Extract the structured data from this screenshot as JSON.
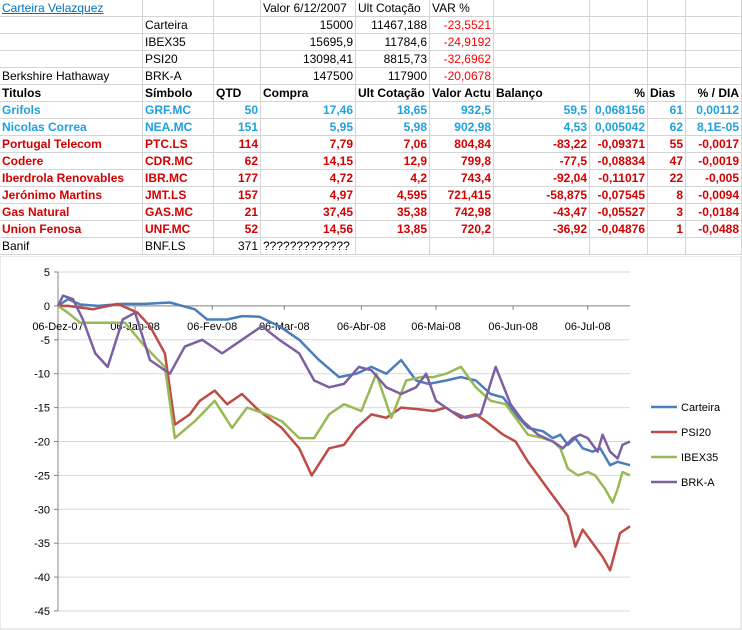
{
  "sheet": {
    "title": "Carteira Velazquez",
    "header_valor": "Valor 6/12/2007",
    "header_ult": "Ult Cotação",
    "header_var": "VAR %",
    "indices": [
      {
        "label": "",
        "name": "Carteira",
        "valor": "15000",
        "ult": "11467,188",
        "var": "-23,5521"
      },
      {
        "label": "",
        "name": "IBEX35",
        "valor": "15695,9",
        "ult": "11784,6",
        "var": "-24,9192"
      },
      {
        "label": "",
        "name": "PSI20",
        "valor": "13098,41",
        "ult": "8815,73",
        "var": "-32,6962"
      },
      {
        "label": "Berkshire Hathaway",
        "name": "BRK-A",
        "valor": "147500",
        "ult": "117900",
        "var": "-20,0678"
      }
    ],
    "columns": [
      "Titulos",
      "Símbolo",
      "QTD",
      "Compra",
      "Ult Cotação",
      "Valor Actu",
      "Balanço",
      "%",
      "Dias",
      "% / DIA"
    ],
    "rows": [
      {
        "titulo": "Grifols",
        "simbolo": "GRF.MC",
        "qtd": "50",
        "compra": "17,46",
        "ult": "18,65",
        "valor": "932,5",
        "balanco": "59,5",
        "pct": "0,068156",
        "dias": "61",
        "dia": "0,00112",
        "tone": "blue"
      },
      {
        "titulo": "Nicolas Correa",
        "simbolo": "NEA.MC",
        "qtd": "151",
        "compra": "5,95",
        "ult": "5,98",
        "valor": "902,98",
        "balanco": "4,53",
        "pct": "0,005042",
        "dias": "62",
        "dia": "8,1E-05",
        "tone": "blue"
      },
      {
        "titulo": "Portugal Telecom",
        "simbolo": "PTC.LS",
        "qtd": "114",
        "compra": "7,79",
        "ult": "7,06",
        "valor": "804,84",
        "balanco": "-83,22",
        "pct": "-0,09371",
        "dias": "55",
        "dia": "-0,0017",
        "tone": "red"
      },
      {
        "titulo": "Codere",
        "simbolo": "CDR.MC",
        "qtd": "62",
        "compra": "14,15",
        "ult": "12,9",
        "valor": "799,8",
        "balanco": "-77,5",
        "pct": "-0,08834",
        "dias": "47",
        "dia": "-0,0019",
        "tone": "red"
      },
      {
        "titulo": "Iberdrola Renovables",
        "simbolo": "IBR.MC",
        "qtd": "177",
        "compra": "4,72",
        "ult": "4,2",
        "valor": "743,4",
        "balanco": "-92,04",
        "pct": "-0,11017",
        "dias": "22",
        "dia": "-0,005",
        "tone": "red"
      },
      {
        "titulo": "Jerónimo Martins",
        "simbolo": "JMT.LS",
        "qtd": "157",
        "compra": "4,97",
        "ult": "4,595",
        "valor": "721,415",
        "balanco": "-58,875",
        "pct": "-0,07545",
        "dias": "8",
        "dia": "-0,0094",
        "tone": "red"
      },
      {
        "titulo": "Gas Natural",
        "simbolo": "GAS.MC",
        "qtd": "21",
        "compra": "37,45",
        "ult": "35,38",
        "valor": "742,98",
        "balanco": "-43,47",
        "pct": "-0,05527",
        "dias": "3",
        "dia": "-0,0184",
        "tone": "red"
      },
      {
        "titulo": "Union Fenosa",
        "simbolo": "UNF.MC",
        "qtd": "52",
        "compra": "14,56",
        "ult": "13,85",
        "valor": "720,2",
        "balanco": "-36,92",
        "pct": "-0,04876",
        "dias": "1",
        "dia": "-0,0488",
        "tone": "red"
      },
      {
        "titulo": "Banif",
        "simbolo": "BNF.LS",
        "qtd": "371",
        "compra": "?????????????",
        "ult": "",
        "valor": "",
        "balanco": "",
        "pct": "",
        "dias": "",
        "dia": "",
        "tone": "black"
      }
    ]
  },
  "chart_data": {
    "type": "line",
    "title": "",
    "xlabel": "",
    "ylabel": "",
    "ylim": [
      -45,
      5
    ],
    "yticks": [
      5,
      0,
      -5,
      -10,
      -15,
      -20,
      -25,
      -30,
      -35,
      -40,
      -45
    ],
    "xlim": [
      "06-Dez-07",
      "23-Jul-08"
    ],
    "xticks": [
      "06-Dez-07",
      "06-Jan-08",
      "06-Fev-08",
      "06-Mar-08",
      "06-Abr-08",
      "06-Mai-08",
      "06-Jun-08",
      "06-Jul-08"
    ],
    "x_dates": [
      "2007-12-06",
      "2008-01-06",
      "2008-02-06",
      "2008-03-06",
      "2008-04-06",
      "2008-05-06",
      "2008-06-06",
      "2008-07-06",
      "2008-07-23"
    ],
    "grid": "horizontal",
    "legend_position": "right",
    "series": [
      {
        "name": "Carteira",
        "color": "#4a7ebb",
        "points": [
          [
            "2007-12-06",
            0
          ],
          [
            "2007-12-10",
            1
          ],
          [
            "2007-12-15",
            0.2
          ],
          [
            "2007-12-22",
            0
          ],
          [
            "2008-01-01",
            0.3
          ],
          [
            "2008-01-10",
            0.3
          ],
          [
            "2008-01-20",
            0.5
          ],
          [
            "2008-01-30",
            -0.5
          ],
          [
            "2008-02-04",
            -2
          ],
          [
            "2008-02-12",
            -2
          ],
          [
            "2008-02-18",
            -1.5
          ],
          [
            "2008-02-25",
            -1.6
          ],
          [
            "2008-03-04",
            -3
          ],
          [
            "2008-03-12",
            -5
          ],
          [
            "2008-03-20",
            -8
          ],
          [
            "2008-03-28",
            -10.5
          ],
          [
            "2008-04-04",
            -10
          ],
          [
            "2008-04-10",
            -9
          ],
          [
            "2008-04-16",
            -10
          ],
          [
            "2008-04-22",
            -8
          ],
          [
            "2008-04-28",
            -11
          ],
          [
            "2008-05-03",
            -11.5
          ],
          [
            "2008-05-10",
            -11
          ],
          [
            "2008-05-16",
            -10.5
          ],
          [
            "2008-05-22",
            -11
          ],
          [
            "2008-05-28",
            -13
          ],
          [
            "2008-06-02",
            -13.5
          ],
          [
            "2008-06-07",
            -16
          ],
          [
            "2008-06-12",
            -18
          ],
          [
            "2008-06-18",
            -18.5
          ],
          [
            "2008-06-22",
            -19.5
          ],
          [
            "2008-06-25",
            -19
          ],
          [
            "2008-06-28",
            -20.5
          ],
          [
            "2008-07-01",
            -19.5
          ],
          [
            "2008-07-04",
            -21
          ],
          [
            "2008-07-08",
            -21.5
          ],
          [
            "2008-07-11",
            -21
          ],
          [
            "2008-07-15",
            -23.5
          ],
          [
            "2008-07-18",
            -23
          ],
          [
            "2008-07-23",
            -23.5
          ]
        ]
      },
      {
        "name": "PSI20",
        "color": "#be4b48",
        "points": [
          [
            "2007-12-06",
            0
          ],
          [
            "2007-12-10",
            0
          ],
          [
            "2007-12-20",
            -0.5
          ],
          [
            "2007-12-30",
            0.3
          ],
          [
            "2008-01-07",
            -1
          ],
          [
            "2008-01-12",
            -3
          ],
          [
            "2008-01-18",
            -7
          ],
          [
            "2008-01-22",
            -17.5
          ],
          [
            "2008-01-28",
            -16
          ],
          [
            "2008-02-01",
            -14
          ],
          [
            "2008-02-07",
            -12.5
          ],
          [
            "2008-02-12",
            -14.5
          ],
          [
            "2008-02-18",
            -13
          ],
          [
            "2008-02-25",
            -15.5
          ],
          [
            "2008-03-05",
            -18
          ],
          [
            "2008-03-12",
            -21
          ],
          [
            "2008-03-17",
            -25
          ],
          [
            "2008-03-24",
            -21
          ],
          [
            "2008-03-30",
            -20.5
          ],
          [
            "2008-04-04",
            -18
          ],
          [
            "2008-04-10",
            -16
          ],
          [
            "2008-04-16",
            -16.5
          ],
          [
            "2008-04-22",
            -15
          ],
          [
            "2008-04-28",
            -15.2
          ],
          [
            "2008-05-05",
            -15.5
          ],
          [
            "2008-05-10",
            -15
          ],
          [
            "2008-05-16",
            -16.5
          ],
          [
            "2008-05-22",
            -16
          ],
          [
            "2008-05-26",
            -17
          ],
          [
            "2008-06-02",
            -19
          ],
          [
            "2008-06-07",
            -20
          ],
          [
            "2008-06-12",
            -23
          ],
          [
            "2008-06-16",
            -25
          ],
          [
            "2008-06-20",
            -27
          ],
          [
            "2008-06-24",
            -29
          ],
          [
            "2008-06-28",
            -31
          ],
          [
            "2008-07-01",
            -35.5
          ],
          [
            "2008-07-04",
            -33
          ],
          [
            "2008-07-08",
            -35
          ],
          [
            "2008-07-12",
            -37
          ],
          [
            "2008-07-15",
            -39
          ],
          [
            "2008-07-19",
            -33.5
          ],
          [
            "2008-07-23",
            -32.5
          ]
        ]
      },
      {
        "name": "IBEX35",
        "color": "#98b954",
        "points": [
          [
            "2007-12-06",
            0
          ],
          [
            "2007-12-10",
            -1
          ],
          [
            "2007-12-15",
            -2.5
          ],
          [
            "2007-12-25",
            -2.5
          ],
          [
            "2008-01-02",
            -2.5
          ],
          [
            "2008-01-10",
            -6
          ],
          [
            "2008-01-18",
            -9
          ],
          [
            "2008-01-22",
            -19.5
          ],
          [
            "2008-01-30",
            -17
          ],
          [
            "2008-02-07",
            -14
          ],
          [
            "2008-02-14",
            -18
          ],
          [
            "2008-02-20",
            -15
          ],
          [
            "2008-02-28",
            -16
          ],
          [
            "2008-03-05",
            -17
          ],
          [
            "2008-03-12",
            -19.5
          ],
          [
            "2008-03-18",
            -19.5
          ],
          [
            "2008-03-24",
            -16
          ],
          [
            "2008-03-30",
            -14.5
          ],
          [
            "2008-04-06",
            -15.5
          ],
          [
            "2008-04-12",
            -10
          ],
          [
            "2008-04-18",
            -16.5
          ],
          [
            "2008-04-24",
            -11
          ],
          [
            "2008-04-30",
            -10.5
          ],
          [
            "2008-05-05",
            -10.5
          ],
          [
            "2008-05-10",
            -10
          ],
          [
            "2008-05-16",
            -9
          ],
          [
            "2008-05-22",
            -12
          ],
          [
            "2008-05-28",
            -14
          ],
          [
            "2008-06-03",
            -14.5
          ],
          [
            "2008-06-07",
            -16.5
          ],
          [
            "2008-06-12",
            -19
          ],
          [
            "2008-06-18",
            -19.5
          ],
          [
            "2008-06-22",
            -20
          ],
          [
            "2008-06-25",
            -21
          ],
          [
            "2008-06-28",
            -24
          ],
          [
            "2008-07-02",
            -25
          ],
          [
            "2008-07-06",
            -24.5
          ],
          [
            "2008-07-09",
            -25
          ],
          [
            "2008-07-13",
            -27
          ],
          [
            "2008-07-16",
            -29
          ],
          [
            "2008-07-18",
            -27
          ],
          [
            "2008-07-20",
            -24.5
          ],
          [
            "2008-07-23",
            -25
          ]
        ]
      },
      {
        "name": "BRK-A",
        "color": "#7d60a0",
        "points": [
          [
            "2007-12-06",
            0
          ],
          [
            "2007-12-08",
            1.5
          ],
          [
            "2007-12-12",
            1
          ],
          [
            "2007-12-16",
            -2
          ],
          [
            "2007-12-21",
            -7
          ],
          [
            "2007-12-26",
            -9
          ],
          [
            "2008-01-01",
            -2
          ],
          [
            "2008-01-06",
            -1
          ],
          [
            "2008-01-12",
            -8
          ],
          [
            "2008-01-20",
            -10
          ],
          [
            "2008-01-26",
            -6
          ],
          [
            "2008-02-02",
            -5
          ],
          [
            "2008-02-10",
            -7
          ],
          [
            "2008-02-18",
            -5
          ],
          [
            "2008-02-26",
            -3
          ],
          [
            "2008-03-04",
            -5
          ],
          [
            "2008-03-12",
            -7
          ],
          [
            "2008-03-18",
            -11
          ],
          [
            "2008-03-24",
            -12
          ],
          [
            "2008-03-30",
            -11.5
          ],
          [
            "2008-04-05",
            -9
          ],
          [
            "2008-04-10",
            -9.5
          ],
          [
            "2008-04-16",
            -12
          ],
          [
            "2008-04-22",
            -13
          ],
          [
            "2008-04-28",
            -12
          ],
          [
            "2008-05-02",
            -10
          ],
          [
            "2008-05-06",
            -14
          ],
          [
            "2008-05-12",
            -15.5
          ],
          [
            "2008-05-18",
            -16.5
          ],
          [
            "2008-05-24",
            -16
          ],
          [
            "2008-05-30",
            -9
          ],
          [
            "2008-06-05",
            -14.5
          ],
          [
            "2008-06-10",
            -17
          ],
          [
            "2008-06-16",
            -19
          ],
          [
            "2008-06-22",
            -20
          ],
          [
            "2008-06-26",
            -21
          ],
          [
            "2008-06-30",
            -19.5
          ],
          [
            "2008-07-03",
            -19
          ],
          [
            "2008-07-06",
            -19.5
          ],
          [
            "2008-07-10",
            -21.5
          ],
          [
            "2008-07-12",
            -19
          ],
          [
            "2008-07-15",
            -21.5
          ],
          [
            "2008-07-18",
            -22.5
          ],
          [
            "2008-07-20",
            -20.5
          ],
          [
            "2008-07-23",
            -20
          ]
        ]
      }
    ]
  }
}
